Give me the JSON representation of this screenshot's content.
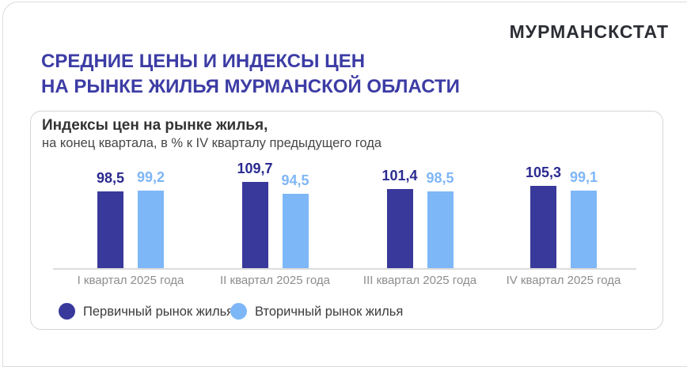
{
  "logo": "МУРМАНСКСТАТ",
  "page_title_line1": "СРЕДНИЕ ЦЕНЫ И ИНДЕКСЫ ЦЕН",
  "page_title_line2": "НА РЫНКЕ ЖИЛЬЯ МУРМАНСКОЙ ОБЛАСТИ",
  "panel": {
    "title": "Индексы цен на рынке жилья,",
    "subtitle": "на конец квартала, в % к IV кварталу предыдущего года"
  },
  "colors": {
    "title_accent": "#3c3ca5",
    "primary": "#39399b",
    "primary_label": "#2b2b90",
    "secondary": "#7eb7f7",
    "secondary_label": "#7fb6f6",
    "axis_line": "#dcdcdc",
    "axis_label": "#8d8d8d"
  },
  "chart_data": {
    "type": "bar",
    "title": "Индексы цен на рынке жилья,",
    "subtitle": "на конец квартала, в % к IV кварталу предыдущего года",
    "categories": [
      "I квартал 2025 года",
      "II квартал 2025 года",
      "III квартал 2025 года",
      "IV квартал 2025 года"
    ],
    "series": [
      {
        "name": "Первичный рынок жилья",
        "values": [
          98.5,
          109.7,
          101.4,
          105.3
        ],
        "labels": [
          "98,5",
          "109,7",
          "101,4",
          "105,3"
        ],
        "color": "#39399b",
        "label_color": "#2b2b90"
      },
      {
        "name": "Вторичный рынок жилья",
        "values": [
          99.2,
          94.5,
          98.5,
          99.1
        ],
        "labels": [
          "99,2",
          "94,5",
          "98,5",
          "99,1"
        ],
        "color": "#7eb7f7",
        "label_color": "#7fb6f6"
      }
    ],
    "xlabel": "",
    "ylabel": "",
    "ylim": [
      0,
      120
    ],
    "grid": false,
    "legend_position": "bottom"
  },
  "legend": {
    "items": [
      {
        "label": "Первичный рынок жилья",
        "color": "#39399b"
      },
      {
        "label": "Вторичный рынок жилья",
        "color": "#7eb7f7"
      }
    ]
  }
}
